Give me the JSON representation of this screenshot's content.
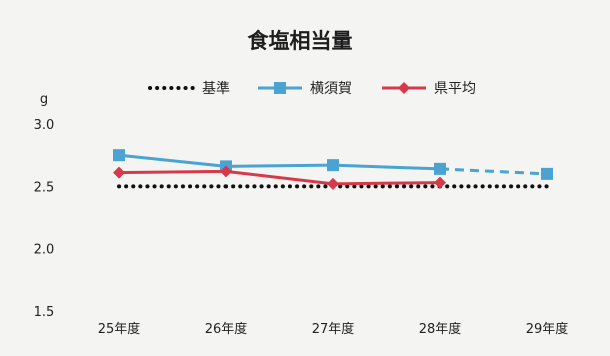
{
  "chart_data": {
    "type": "line",
    "title": "食塩相当量",
    "y_unit": "g",
    "categories": [
      "25年度",
      "26年度",
      "27年度",
      "28年度",
      "29年度"
    ],
    "ylim": [
      1.5,
      3.0
    ],
    "yticks": [
      "3.0",
      "2.5",
      "2.0",
      "1.5"
    ],
    "grid": false,
    "legend_position": "top",
    "series": [
      {
        "name": "基準",
        "values": [
          2.5,
          2.5,
          2.5,
          2.5,
          2.5
        ],
        "color": "#111111",
        "style": "dotted",
        "marker": "none"
      },
      {
        "name": "横須賀",
        "values": [
          2.75,
          2.66,
          2.67,
          2.64,
          2.6
        ],
        "color": "#4aa3d3",
        "style": "solid",
        "marker": "square",
        "dashed_from_index": 3
      },
      {
        "name": "県平均",
        "values": [
          2.61,
          2.62,
          2.52,
          2.53,
          null
        ],
        "color": "#d63a4a",
        "style": "solid",
        "marker": "diamond"
      }
    ]
  }
}
